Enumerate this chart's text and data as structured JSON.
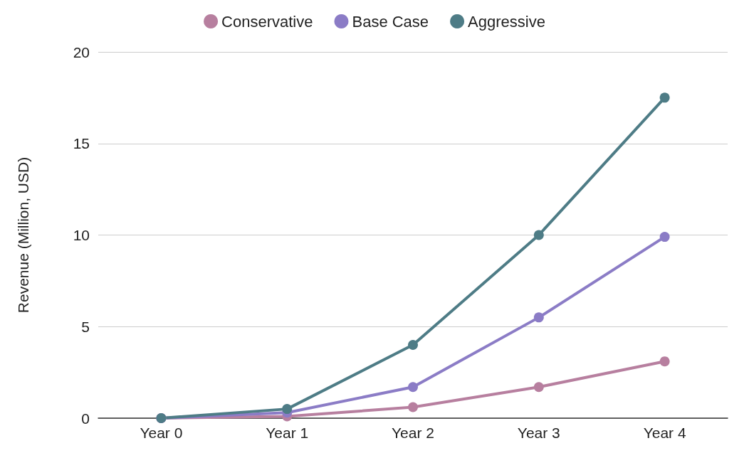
{
  "chart_data": {
    "type": "line",
    "ylabel": "Revenue (Million, USD)",
    "categories": [
      "Year 0",
      "Year 1",
      "Year 2",
      "Year 3",
      "Year 4"
    ],
    "series": [
      {
        "name": "Conservative",
        "color": "#b77f9f",
        "values": [
          0,
          0.1,
          0.6,
          1.7,
          3.1
        ]
      },
      {
        "name": "Base Case",
        "color": "#8b7cc6",
        "values": [
          0,
          0.3,
          1.7,
          5.5,
          9.9
        ]
      },
      {
        "name": "Aggressive",
        "color": "#4e7c86",
        "values": [
          0,
          0.5,
          4,
          10,
          17.5
        ]
      }
    ],
    "ylim": [
      0,
      20
    ],
    "yticks": [
      0,
      5,
      10,
      15,
      20
    ],
    "grid": "y",
    "legend": "top",
    "marker": "circle",
    "line_style": "solid"
  }
}
